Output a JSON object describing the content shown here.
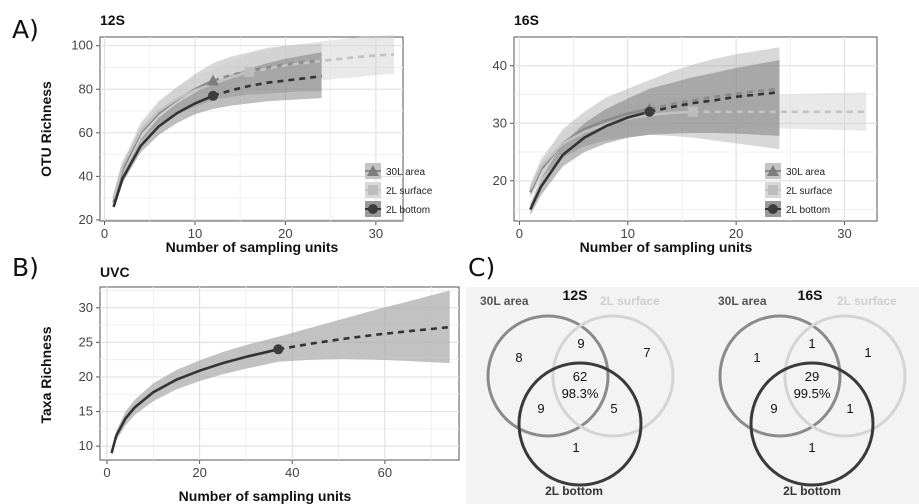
{
  "panels": {
    "A": "A)",
    "B": "B)",
    "C": "C)"
  },
  "colors": {
    "series_30L": "#8a8a8a",
    "series_2L_surface": "#bdbdbd",
    "series_2L_bottom": "#333333",
    "grid": "#e6e6e6",
    "ribbon": "#9a9a9a"
  },
  "chart_data": [
    {
      "type": "line",
      "title": "12S",
      "xlabel": "Number of sampling units",
      "ylabel": "OTU Richness",
      "xlim": [
        -0.5,
        33
      ],
      "ylim": [
        19.5,
        104
      ],
      "xticks": [
        0,
        10,
        20,
        30
      ],
      "yticks": [
        20,
        40,
        60,
        80,
        100
      ],
      "grid": true,
      "legend": "bottom-right",
      "series": [
        {
          "name": "30L area",
          "marker": "triangle",
          "observed_n": 12,
          "observed_value": 84,
          "max_n": 24,
          "x": [
            1,
            2,
            4,
            6,
            8,
            10,
            12,
            14,
            16,
            18,
            20,
            22,
            24
          ],
          "y": [
            28,
            43,
            60,
            69,
            75,
            80,
            84,
            86.5,
            88.5,
            90,
            91.5,
            92.5,
            93
          ],
          "lower": [
            27,
            41,
            56,
            64,
            69,
            72,
            75,
            76.5,
            77.5,
            78,
            78.5,
            79,
            79
          ],
          "upper": [
            29,
            45,
            64,
            74,
            81,
            87,
            92,
            95,
            97,
            99,
            100,
            100.5,
            101
          ]
        },
        {
          "name": "2L surface",
          "marker": "square",
          "observed_n": 16,
          "observed_value": 88,
          "max_n": 32,
          "x": [
            1,
            2,
            4,
            6,
            8,
            10,
            12,
            14,
            16,
            18,
            20,
            22,
            24,
            26,
            28,
            30,
            32
          ],
          "y": [
            30,
            45,
            61,
            70,
            75.5,
            79.5,
            82.5,
            85.5,
            88,
            89.5,
            91,
            92,
            93,
            94,
            94.8,
            95.5,
            96
          ],
          "lower": [
            29,
            43,
            57,
            65,
            70,
            73,
            76,
            78,
            80,
            81,
            82,
            83,
            84,
            85,
            85.5,
            86.5,
            87
          ],
          "upper": [
            31,
            47,
            65,
            75,
            81,
            86,
            89,
            93,
            96,
            98,
            100,
            101,
            102,
            103,
            104,
            104.5,
            105
          ]
        },
        {
          "name": "2L bottom",
          "marker": "circle",
          "observed_n": 12,
          "observed_value": 77,
          "max_n": 24,
          "x": [
            1,
            2,
            4,
            6,
            8,
            10,
            12,
            14,
            16,
            18,
            20,
            22,
            24
          ],
          "y": [
            26,
            39,
            54,
            63,
            69,
            73.5,
            77,
            79.5,
            81.5,
            83,
            84,
            85,
            86
          ],
          "lower": [
            25,
            37,
            51,
            59,
            64.5,
            68.5,
            71,
            72.5,
            73.5,
            74.5,
            75,
            75.5,
            76
          ],
          "upper": [
            27,
            41,
            57,
            67,
            73.5,
            78.5,
            83,
            86.5,
            89.5,
            92,
            94,
            95.5,
            97
          ]
        }
      ]
    },
    {
      "type": "line",
      "title": "16S",
      "xlabel": "Number of sampling units",
      "ylabel": "",
      "xlim": [
        -0.5,
        33
      ],
      "ylim": [
        13,
        45
      ],
      "xticks": [
        0,
        10,
        20,
        30
      ],
      "yticks": [
        20,
        30,
        40
      ],
      "grid": true,
      "legend": "bottom-right",
      "series": [
        {
          "name": "30L area",
          "marker": "triangle",
          "observed_n": 12,
          "observed_value": 32.5,
          "max_n": 24,
          "x": [
            1,
            2,
            4,
            6,
            8,
            10,
            12,
            14,
            16,
            18,
            20,
            22,
            24
          ],
          "y": [
            18,
            22,
            26.5,
            29,
            30.5,
            31.7,
            32.5,
            33.3,
            34,
            34.6,
            35.1,
            35.6,
            36
          ],
          "lower": [
            17,
            20.5,
            24,
            26,
            27,
            27.5,
            28,
            27.8,
            27.5,
            27,
            26.5,
            26,
            25.5
          ],
          "upper": [
            19,
            23.5,
            29,
            32,
            34.5,
            36,
            37.5,
            39,
            40.2,
            41.2,
            42,
            42.6,
            43.2
          ]
        },
        {
          "name": "2L surface",
          "marker": "square",
          "observed_n": 16,
          "observed_value": 32,
          "max_n": 32,
          "x": [
            1,
            2,
            4,
            6,
            8,
            10,
            12,
            14,
            16,
            18,
            20,
            22,
            24,
            26,
            28,
            30,
            32
          ],
          "y": [
            18.5,
            22.5,
            26.5,
            28.5,
            29.8,
            30.8,
            31.4,
            31.8,
            32,
            32,
            32,
            32,
            32,
            32,
            32,
            32,
            32
          ],
          "lower": [
            17.5,
            21,
            24.5,
            26.3,
            27.5,
            28.3,
            28.8,
            29.2,
            29.4,
            29.4,
            29.3,
            29.2,
            29.1,
            29,
            28.9,
            28.8,
            28.7
          ],
          "upper": [
            19.5,
            24,
            28.5,
            30.8,
            32.2,
            33.3,
            34,
            34.4,
            34.6,
            34.7,
            34.8,
            34.9,
            35,
            35.1,
            35.2,
            35.3,
            35.4
          ]
        },
        {
          "name": "2L bottom",
          "marker": "circle",
          "observed_n": 12,
          "observed_value": 32,
          "max_n": 24,
          "x": [
            1,
            2,
            4,
            6,
            8,
            10,
            12,
            14,
            16,
            18,
            20,
            22,
            24
          ],
          "y": [
            15,
            19,
            24.5,
            27.5,
            29.5,
            31,
            32,
            32.8,
            33.5,
            34,
            34.6,
            35,
            35.4
          ],
          "lower": [
            14,
            17.5,
            22.5,
            25,
            26.5,
            27.5,
            28,
            28.2,
            28.3,
            28.3,
            28.2,
            28,
            27.8
          ],
          "upper": [
            16,
            20.5,
            26.5,
            30,
            32.5,
            34.3,
            36,
            37,
            38,
            38.8,
            39.6,
            40.3,
            41
          ]
        }
      ]
    },
    {
      "type": "line",
      "title": "UVC",
      "xlabel": "Number of sampling units",
      "ylabel": "Taxa Richness",
      "xlim": [
        -1.5,
        76
      ],
      "ylim": [
        8,
        33
      ],
      "xticks": [
        0,
        20,
        40,
        60
      ],
      "yticks": [
        10,
        15,
        20,
        25,
        30
      ],
      "grid": true,
      "series": [
        {
          "name": "",
          "marker": "circle",
          "observed_n": 37,
          "observed_value": 24,
          "max_n": 74,
          "x": [
            1,
            2,
            4,
            6,
            10,
            15,
            20,
            25,
            30,
            37,
            44,
            51,
            58,
            65,
            74
          ],
          "y": [
            9,
            11.5,
            14,
            15.6,
            17.8,
            19.6,
            20.9,
            22,
            22.9,
            24,
            24.8,
            25.5,
            26.1,
            26.6,
            27.2
          ],
          "lower": [
            8.5,
            10.8,
            13,
            14.5,
            16.5,
            18.2,
            19.4,
            20.4,
            21.2,
            22.2,
            22.5,
            22.6,
            22.5,
            22.3,
            22
          ],
          "upper": [
            9.5,
            12.2,
            15,
            16.7,
            19.1,
            21,
            22.4,
            23.6,
            24.6,
            25.8,
            27.1,
            28.4,
            29.7,
            30.9,
            32.5
          ]
        }
      ]
    }
  ],
  "venn": [
    {
      "title": "12S",
      "labels": {
        "a": "30L area",
        "b": "2L surface",
        "c": "2L bottom"
      },
      "counts": {
        "a_only": "8",
        "ab": "9",
        "b_only": "7",
        "abc": "62",
        "abc_pct": "98.3%",
        "ac": "9",
        "bc": "5",
        "c_only": "1"
      }
    },
    {
      "title": "16S",
      "labels": {
        "a": "30L area",
        "b": "2L surface",
        "c": "2L bottom"
      },
      "counts": {
        "a_only": "1",
        "ab": "1",
        "b_only": "1",
        "abc": "29",
        "abc_pct": "99.5%",
        "ac": "9",
        "bc": "1",
        "c_only": "1"
      }
    }
  ]
}
